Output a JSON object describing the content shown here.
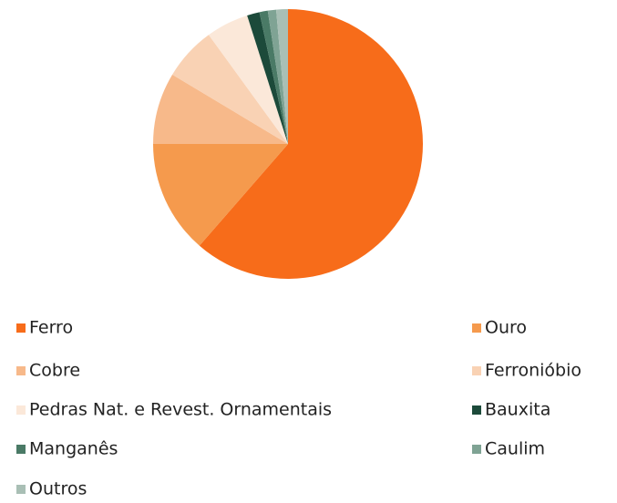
{
  "chart_data": {
    "type": "pie",
    "categories": [
      "Ferro",
      "Ouro",
      "Cobre",
      "Ferroniόbio",
      "Pedras Nat. e Revest. Ornamentais",
      "Bauxita",
      "Manganês",
      "Caulim",
      "Outros"
    ],
    "values": [
      61.4,
      13.6,
      8.6,
      6.4,
      5.1,
      1.5,
      1,
      1,
      1.4
    ],
    "colors": [
      "#f76c1a",
      "#f59a4d",
      "#f7b98a",
      "#f9d2b4",
      "#fbe8d9",
      "#1c4a3a",
      "#4a7a66",
      "#7fa394",
      "#a9bfb5"
    ]
  }
}
